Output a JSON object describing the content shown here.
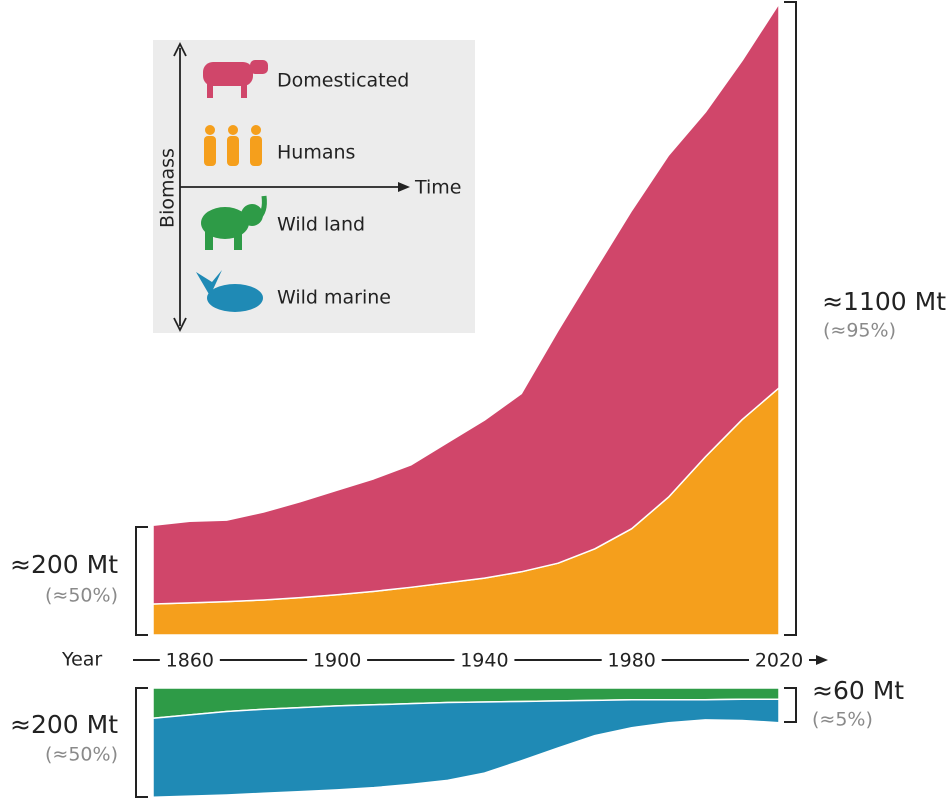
{
  "chart_data": [
    {
      "type": "area",
      "stacked": true,
      "direction": "up",
      "x_label": "Year",
      "x": [
        1850,
        1860,
        1870,
        1880,
        1890,
        1900,
        1910,
        1920,
        1930,
        1940,
        1950,
        1960,
        1970,
        1980,
        1990,
        2000,
        2010,
        2020
      ],
      "xlim": [
        1850,
        2020
      ],
      "xticks": [
        1860,
        1900,
        1940,
        1980,
        2020
      ],
      "ylim": [
        0,
        1100
      ],
      "series": [
        {
          "name": "Humans",
          "color": "#f59f1c",
          "values": [
            54,
            56,
            58,
            61,
            65,
            70,
            76,
            83,
            91,
            99,
            110,
            125,
            150,
            185,
            240,
            310,
            375,
            430
          ]
        },
        {
          "name": "Domesticated",
          "color": "#d0466a",
          "values": [
            137,
            142,
            142,
            153,
            167,
            182,
            196,
            213,
            244,
            275,
            310,
            405,
            485,
            554,
            595,
            600,
            625,
            669
          ]
        }
      ],
      "legend_y_label": "Biomass",
      "legend_x_label": "Time",
      "annotations": [
        {
          "text": "≈200 Mt",
          "sub": "(≈50%)"
        },
        {
          "text": "≈1100 Mt",
          "sub": "(≈95%)"
        }
      ]
    },
    {
      "type": "area",
      "stacked": true,
      "direction": "down",
      "x": [
        1850,
        1860,
        1870,
        1880,
        1890,
        1900,
        1910,
        1920,
        1930,
        1940,
        1950,
        1960,
        1970,
        1980,
        1990,
        2000,
        2010,
        2020
      ],
      "xlim": [
        1850,
        2020
      ],
      "ylim": [
        0,
        200
      ],
      "series": [
        {
          "name": "Wild land",
          "color": "#2e9b47",
          "values": [
            54,
            48,
            42,
            38,
            35,
            32,
            30,
            28,
            26,
            25,
            24,
            23,
            22,
            21,
            21,
            21,
            20,
            20
          ]
        },
        {
          "name": "Wild marine",
          "color": "#1f8ab5",
          "values": [
            141,
            145,
            149,
            150,
            150,
            150,
            148,
            144,
            139,
            127,
            106,
            84,
            63,
            50,
            41,
            36,
            38,
            42
          ]
        }
      ],
      "annotations": [
        {
          "text": "≈200 Mt",
          "sub": "(≈50%)"
        },
        {
          "text": "≈60 Mt",
          "sub": "(≈5%)"
        }
      ]
    }
  ]
}
